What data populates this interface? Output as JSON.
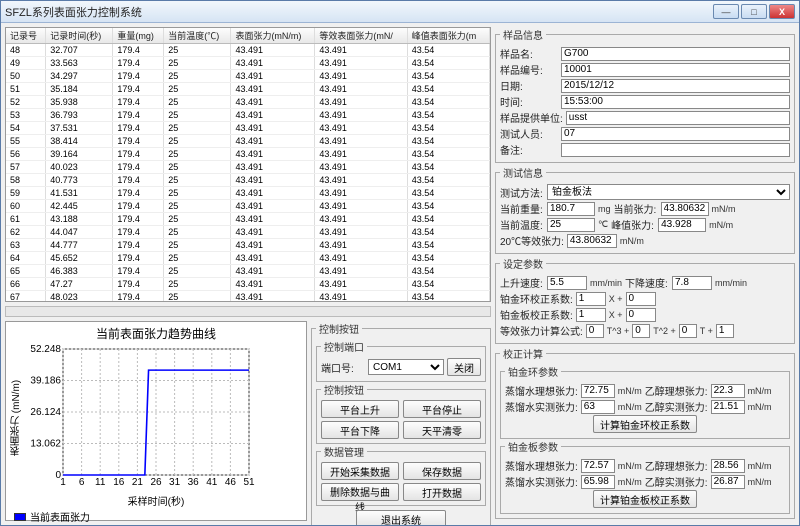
{
  "window": {
    "title": "SFZL系列表面张力控制系统"
  },
  "grid": {
    "columns": [
      "记录号",
      "记录时间(秒)",
      "重量(mg)",
      "当前温度(℃)",
      "表面张力(mN/m)",
      "等效表面张力(mN/",
      "峰值表面张力(m"
    ],
    "rows": [
      [
        "48",
        "32.707",
        "179.4",
        "25",
        "43.491",
        "43.491",
        "43.54"
      ],
      [
        "49",
        "33.563",
        "179.4",
        "25",
        "43.491",
        "43.491",
        "43.54"
      ],
      [
        "50",
        "34.297",
        "179.4",
        "25",
        "43.491",
        "43.491",
        "43.54"
      ],
      [
        "51",
        "35.184",
        "179.4",
        "25",
        "43.491",
        "43.491",
        "43.54"
      ],
      [
        "52",
        "35.938",
        "179.4",
        "25",
        "43.491",
        "43.491",
        "43.54"
      ],
      [
        "53",
        "36.793",
        "179.4",
        "25",
        "43.491",
        "43.491",
        "43.54"
      ],
      [
        "54",
        "37.531",
        "179.4",
        "25",
        "43.491",
        "43.491",
        "43.54"
      ],
      [
        "55",
        "38.414",
        "179.4",
        "25",
        "43.491",
        "43.491",
        "43.54"
      ],
      [
        "56",
        "39.164",
        "179.4",
        "25",
        "43.491",
        "43.491",
        "43.54"
      ],
      [
        "57",
        "40.023",
        "179.4",
        "25",
        "43.491",
        "43.491",
        "43.54"
      ],
      [
        "58",
        "40.773",
        "179.4",
        "25",
        "43.491",
        "43.491",
        "43.54"
      ],
      [
        "59",
        "41.531",
        "179.4",
        "25",
        "43.491",
        "43.491",
        "43.54"
      ],
      [
        "60",
        "42.445",
        "179.4",
        "25",
        "43.491",
        "43.491",
        "43.54"
      ],
      [
        "61",
        "43.188",
        "179.4",
        "25",
        "43.491",
        "43.491",
        "43.54"
      ],
      [
        "62",
        "44.047",
        "179.4",
        "25",
        "43.491",
        "43.491",
        "43.54"
      ],
      [
        "63",
        "44.777",
        "179.4",
        "25",
        "43.491",
        "43.491",
        "43.54"
      ],
      [
        "64",
        "45.652",
        "179.4",
        "25",
        "43.491",
        "43.491",
        "43.54"
      ],
      [
        "65",
        "46.383",
        "179.4",
        "25",
        "43.491",
        "43.491",
        "43.54"
      ],
      [
        "66",
        "47.27",
        "179.4",
        "25",
        "43.491",
        "43.491",
        "43.54"
      ],
      [
        "67",
        "48.023",
        "179.4",
        "25",
        "43.491",
        "43.491",
        "43.54"
      ],
      [
        "68",
        "48.883",
        "179.4",
        "25",
        "43.491",
        "43.491",
        "43.54"
      ],
      [
        "69",
        "49.629",
        "179.4",
        "25",
        "43.491",
        "43.491",
        "43.54"
      ],
      [
        "70",
        "50.398",
        "179.4",
        "25",
        "43.491",
        "43.491",
        "43.54"
      ]
    ]
  },
  "chart": {
    "title": "当前表面张力趋势曲线",
    "xaxis": "采样时间(秒)",
    "yaxis": "表面张力 (mN/m)",
    "yt": [
      0,
      13.062,
      26.124,
      39.186,
      52.248
    ],
    "xt": [
      1,
      6,
      11,
      16,
      21,
      26,
      31,
      36,
      41,
      46,
      51
    ],
    "line_color": "#0000ff",
    "grid_color": "#bbbbbb",
    "bg": "#ffffff",
    "series": [
      [
        1,
        0
      ],
      [
        22,
        0
      ],
      [
        23,
        0
      ],
      [
        24,
        43.49
      ],
      [
        51,
        43.49
      ]
    ],
    "legend": "当前表面张力"
  },
  "ctrl": {
    "g1": "控制按钮",
    "g2": "控制端口",
    "port_lbl": "端口号:",
    "port": "COM1",
    "close": "关闭",
    "g3": "控制按钮",
    "up": "平台上升",
    "stop": "平台停止",
    "down": "平台下降",
    "zero": "天平清零",
    "g4": "数据管理",
    "start": "开始采集数据",
    "save": "保存数据",
    "del": "删除数据与曲线",
    "open": "打开数据",
    "exit": "退出系统"
  },
  "sample": {
    "grp": "样品信息",
    "name_lbl": "样品名:",
    "name": "G700",
    "no_lbl": "样品编号:",
    "no": "10001",
    "date_lbl": "日期:",
    "date": "2015/12/12",
    "time_lbl": "时间:",
    "time": "15:53:00",
    "provider_lbl": "样品提供单位:",
    "provider": "usst",
    "tester_lbl": "测试人员:",
    "tester": "07",
    "note_lbl": "备注:",
    "note": ""
  },
  "test": {
    "grp": "测试信息",
    "method_lbl": "测试方法:",
    "method": "铂金板法",
    "weight_lbl": "当前重量:",
    "weight": "180.7",
    "weight_u": "mg",
    "tension_lbl": "当前张力:",
    "tension": "43.80632",
    "tension_u": "mN/m",
    "temp_lbl": "当前温度:",
    "temp": "25",
    "temp_u": "℃",
    "peak_lbl": "峰值张力:",
    "peak": "43.928",
    "peak_u": "mN/m",
    "eq20_lbl": "20℃等效张力:",
    "eq20": "43.80632",
    "eq20_u": "mN/m"
  },
  "set": {
    "grp": "设定参数",
    "up_lbl": "上升速度:",
    "up": "5.5",
    "up_u": "mm/min",
    "down_lbl": "下降速度:",
    "down": "7.8",
    "down_u": "mm/min",
    "ring_lbl": "铂金环校正系数:",
    "ring": "1",
    "plate_lbl": "铂金板校正系数:",
    "plate": "1",
    "x": "X +",
    "zero": "0",
    "formula_lbl": "等效张力计算公式:",
    "f0": "0",
    "t3": "T^3 +",
    "f1": "0",
    "t2": "T^2 +",
    "f2": "0",
    "t1": "T +",
    "f3": "1"
  },
  "calc": {
    "grp": "校正计算",
    "ring_grp": "铂金环参数",
    "water_ideal_lbl": "蒸馏水理想张力:",
    "water_ideal_r": "72.75",
    "eth_ideal_lbl": "乙醇理想张力:",
    "eth_ideal_r": "22.3",
    "water_real_lbl": "蒸馏水实测张力:",
    "water_real_r": "63",
    "eth_real_lbl": "乙醇实测张力:",
    "eth_real_r": "21.51",
    "ring_btn": "计算铂金环校正系数",
    "plate_grp": "铂金板参数",
    "water_ideal_p": "72.57",
    "eth_ideal_p": "28.56",
    "water_real_p": "65.98",
    "eth_real_p": "26.87",
    "plate_btn": "计算铂金板校正系数",
    "u": "mN/m"
  }
}
